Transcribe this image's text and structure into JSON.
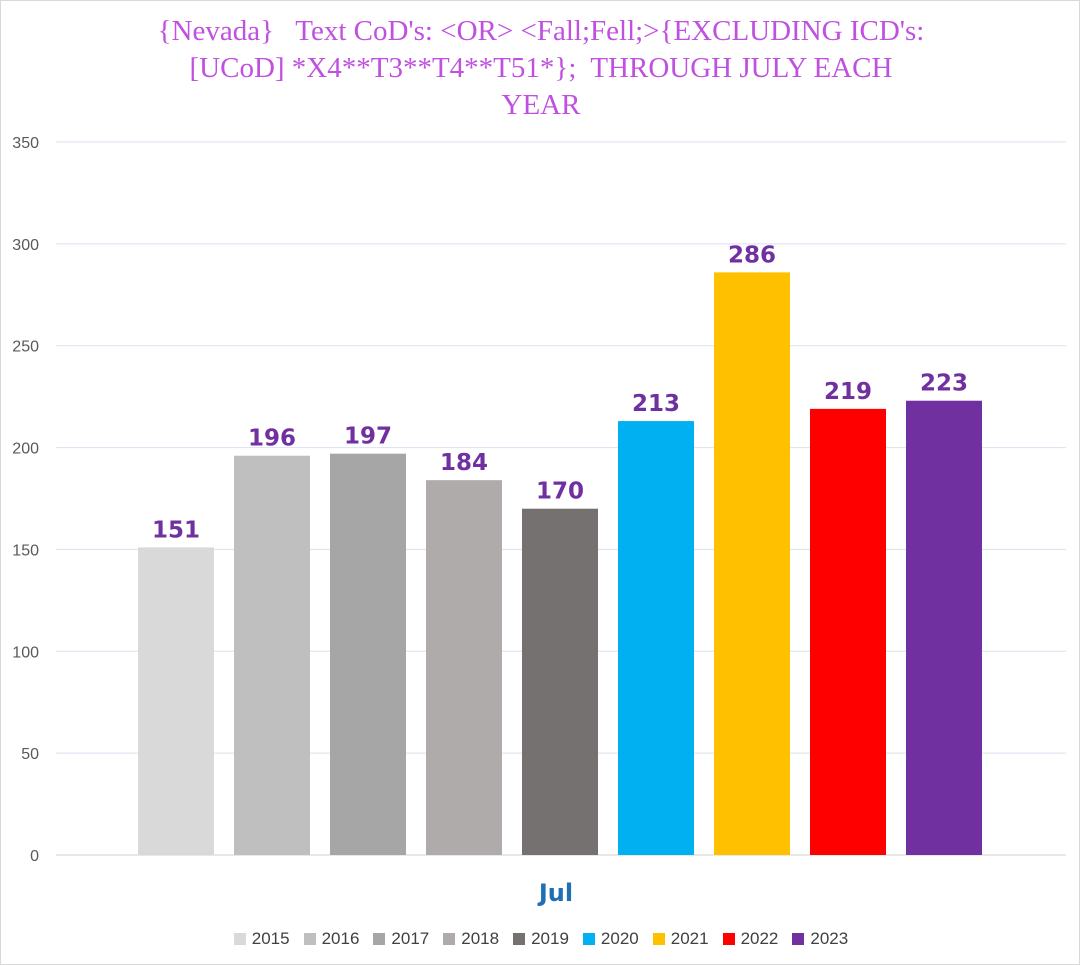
{
  "chart_data": {
    "type": "bar",
    "title_lines": [
      "{Nevada}   Text CoD's: <OR> <Fall;Fell;>{EXCLUDING ICD's:",
      "[UCoD] *X4**T3**T4**T51*};  THROUGH JULY EACH",
      "YEAR"
    ],
    "xlabel": "Jul",
    "ylabel": "",
    "ylim": [
      0,
      350
    ],
    "yticks": [
      0,
      50,
      100,
      150,
      200,
      250,
      300,
      350
    ],
    "grid": true,
    "legend_position": "bottom",
    "categories": [
      "Jul"
    ],
    "series": [
      {
        "name": "2015",
        "values": [
          151
        ],
        "color": "#d9d9d9"
      },
      {
        "name": "2016",
        "values": [
          196
        ],
        "color": "#bfbfbf"
      },
      {
        "name": "2017",
        "values": [
          197
        ],
        "color": "#a6a6a6"
      },
      {
        "name": "2018",
        "values": [
          184
        ],
        "color": "#afabab"
      },
      {
        "name": "2019",
        "values": [
          170
        ],
        "color": "#767171"
      },
      {
        "name": "2020",
        "values": [
          213
        ],
        "color": "#00b0f0"
      },
      {
        "name": "2021",
        "values": [
          286
        ],
        "color": "#ffc000"
      },
      {
        "name": "2022",
        "values": [
          219
        ],
        "color": "#ff0000"
      },
      {
        "name": "2023",
        "values": [
          223
        ],
        "color": "#7030a0"
      }
    ],
    "data_label_color": "#7030a0"
  }
}
